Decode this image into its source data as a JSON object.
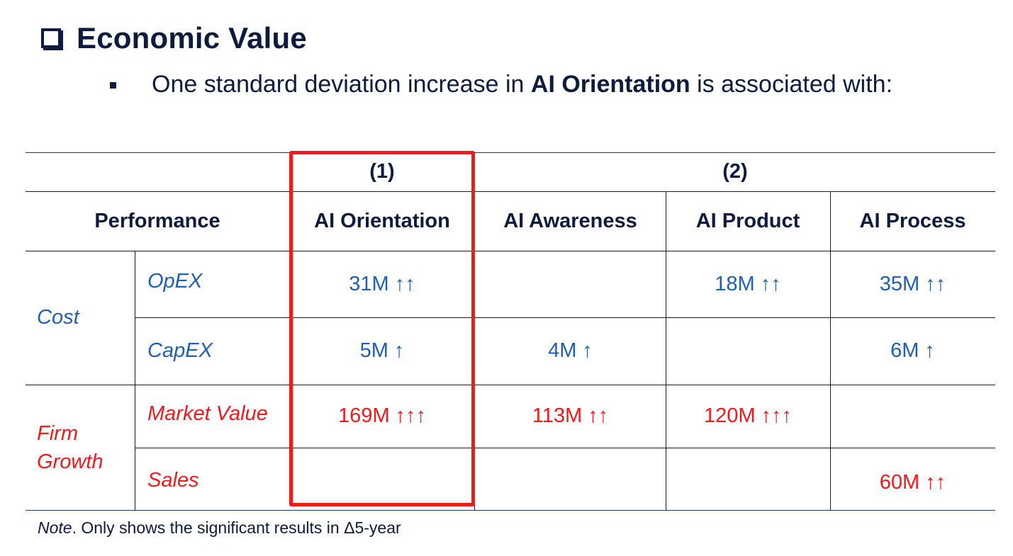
{
  "heading": {
    "icon": "checkbox-icon",
    "title": "Economic Value"
  },
  "bullet": {
    "text_before": "One standard deviation increase in ",
    "text_bold": "AI Orientation",
    "text_after": " is associated with:"
  },
  "table": {
    "model_labels": [
      "(1)",
      "(2)"
    ],
    "row_group_header": "Performance",
    "column_headers": [
      "AI Orientation",
      "AI Awareness",
      "AI Product",
      "AI Process"
    ],
    "groups": [
      {
        "name": "Cost",
        "color": "#1f5fb4",
        "rows": [
          {
            "label": "OpEX",
            "values": [
              "31M ↑↑",
              "",
              "18M ↑↑",
              "35M ↑↑"
            ]
          },
          {
            "label": "CapEX",
            "values": [
              "5M ↑",
              "4M ↑",
              "",
              "6M ↑"
            ]
          }
        ]
      },
      {
        "name": "Firm Growth",
        "color": "#ee1c1c",
        "rows": [
          {
            "label": "Market Value",
            "values": [
              "169M ↑↑↑",
              "113M ↑↑",
              "120M ↑↑↑",
              ""
            ]
          },
          {
            "label": "Sales",
            "values": [
              "",
              "",
              "",
              "60M ↑↑"
            ]
          }
        ]
      }
    ],
    "highlight_color": "#ee1c1c"
  },
  "note": {
    "label": "Note",
    "text": ". Only shows the significant results in Δ5-year"
  }
}
